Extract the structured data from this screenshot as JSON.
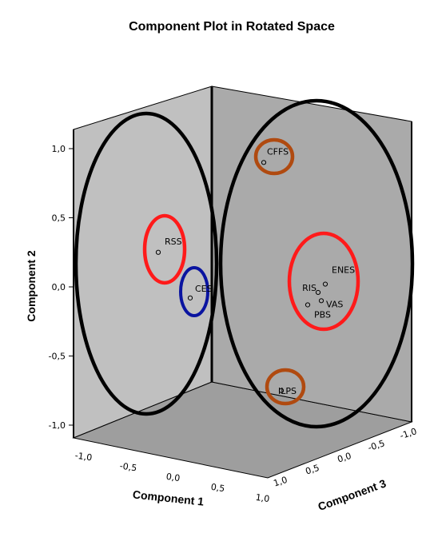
{
  "chart_data": {
    "type": "scatter",
    "title": "Component Plot in Rotated Space",
    "axes": {
      "x": {
        "label": "Component 1",
        "ticks": [
          "-1,0",
          "-0,5",
          "0,0",
          "0,5",
          "1,0"
        ]
      },
      "y": {
        "label": "Component 2",
        "ticks": [
          "1,0",
          "0,5",
          "0,0",
          "-0,5",
          "-1,0"
        ]
      },
      "z": {
        "label": "Component 3",
        "ticks": [
          "1,0",
          "0,5",
          "0,0",
          "-0,5",
          "-1,0"
        ]
      }
    },
    "points": [
      {
        "name": "CFFS",
        "component2": 0.9
      },
      {
        "name": "RSS",
        "component2": 0.25
      },
      {
        "name": "CES",
        "component2": -0.08
      },
      {
        "name": "ENES",
        "component2": 0.02
      },
      {
        "name": "RIS",
        "component2": -0.04
      },
      {
        "name": "VAS",
        "component2": -0.1
      },
      {
        "name": "PBS",
        "component2": -0.13
      },
      {
        "name": "ILPS",
        "component2": -0.75
      }
    ],
    "groups": [
      {
        "members": [
          "CFFS"
        ],
        "color": "#b04a10"
      },
      {
        "members": [
          "RSS"
        ],
        "color": "#ff1a1a"
      },
      {
        "members": [
          "CES"
        ],
        "color": "#0a14a0"
      },
      {
        "members": [
          "ENES",
          "RIS",
          "VAS",
          "PBS"
        ],
        "color": "#ff1a1a"
      },
      {
        "members": [
          "ILPS"
        ],
        "color": "#b04a10"
      }
    ],
    "background": {
      "left_wall": "#c0c0c0",
      "back_wall": "#aaaaaa",
      "floor": "#9e9e9e"
    }
  }
}
